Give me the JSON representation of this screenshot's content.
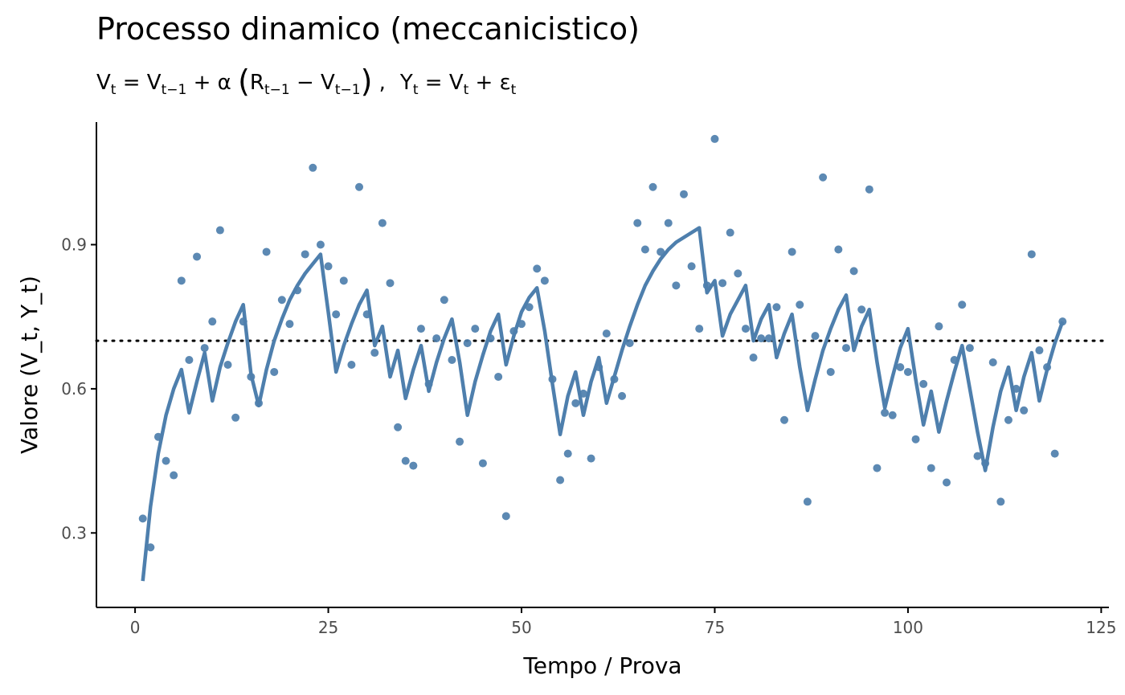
{
  "chart_data": {
    "type": "line",
    "title": "Processo dinamico (meccanicistico)",
    "subtitle": {
      "V": "V",
      "t": "t",
      "t_minus_1": "t−1",
      "alpha": "α",
      "R": "R",
      "Y": "Y",
      "epsilon": "ε",
      "eq": "=",
      "plus": "+",
      "minus": "−",
      "lparen": "(",
      "rparen": ")",
      "comma": ","
    },
    "xlabel": "Tempo / Prova",
    "ylabel": "Valore (V_t, Y_t)",
    "xlim": [
      -5,
      126
    ],
    "ylim": [
      0.145,
      1.155
    ],
    "xticks": [
      0,
      25,
      50,
      75,
      100,
      125
    ],
    "xtick_labels": [
      "0",
      "25",
      "50",
      "75",
      "100",
      "125"
    ],
    "yticks": [
      0.3,
      0.6,
      0.9
    ],
    "ytick_labels": [
      "0.3",
      "0.6",
      "0.9"
    ],
    "grid": false,
    "reference_line": {
      "y": 0.7,
      "style": "dotted",
      "color": "#000000"
    },
    "colors": {
      "series": "#4e7fad",
      "axis": "#000000",
      "tick_text": "#4d4d4d"
    },
    "series": [
      {
        "type": "line",
        "x": [
          1,
          2,
          3,
          4,
          5,
          6,
          7,
          8,
          9,
          10,
          11,
          12,
          13,
          14,
          15,
          16,
          17,
          18,
          19,
          20,
          21,
          22,
          23,
          24,
          25,
          26,
          27,
          28,
          29,
          30,
          31,
          32,
          33,
          34,
          35,
          36,
          37,
          38,
          39,
          40,
          41,
          42,
          43,
          44,
          45,
          46,
          47,
          48,
          49,
          50,
          51,
          52,
          53,
          54,
          55,
          56,
          57,
          58,
          59,
          60,
          61,
          62,
          63,
          64,
          65,
          66,
          67,
          68,
          69,
          70,
          71,
          72,
          73,
          74,
          75,
          76,
          77,
          78,
          79,
          80,
          81,
          82,
          83,
          84,
          85,
          86,
          87,
          88,
          89,
          90,
          91,
          92,
          93,
          94,
          95,
          96,
          97,
          98,
          99,
          100,
          101,
          102,
          103,
          104,
          105,
          106,
          107,
          108,
          109,
          110,
          111,
          112,
          113,
          114,
          115,
          116,
          117,
          118,
          119,
          120
        ],
        "y": [
          0.2,
          0.355,
          0.465,
          0.545,
          0.6,
          0.64,
          0.55,
          0.615,
          0.675,
          0.575,
          0.645,
          0.695,
          0.74,
          0.775,
          0.63,
          0.565,
          0.64,
          0.7,
          0.745,
          0.785,
          0.815,
          0.84,
          0.86,
          0.88,
          0.76,
          0.635,
          0.69,
          0.735,
          0.775,
          0.805,
          0.69,
          0.73,
          0.625,
          0.68,
          0.58,
          0.64,
          0.69,
          0.595,
          0.655,
          0.705,
          0.745,
          0.655,
          0.545,
          0.615,
          0.67,
          0.72,
          0.755,
          0.65,
          0.71,
          0.76,
          0.79,
          0.81,
          0.72,
          0.61,
          0.505,
          0.585,
          0.635,
          0.545,
          0.615,
          0.665,
          0.57,
          0.625,
          0.68,
          0.73,
          0.775,
          0.815,
          0.845,
          0.87,
          0.89,
          0.905,
          0.915,
          0.925,
          0.935,
          0.8,
          0.825,
          0.71,
          0.755,
          0.785,
          0.815,
          0.7,
          0.745,
          0.775,
          0.665,
          0.715,
          0.755,
          0.645,
          0.555,
          0.62,
          0.68,
          0.725,
          0.765,
          0.795,
          0.68,
          0.73,
          0.765,
          0.655,
          0.56,
          0.625,
          0.685,
          0.725,
          0.62,
          0.525,
          0.595,
          0.51,
          0.575,
          0.635,
          0.69,
          0.6,
          0.51,
          0.43,
          0.52,
          0.595,
          0.645,
          0.555,
          0.625,
          0.675,
          0.575,
          0.64,
          0.695,
          0.74
        ]
      },
      {
        "type": "scatter",
        "x": [
          1,
          2,
          3,
          4,
          5,
          6,
          7,
          8,
          9,
          10,
          11,
          12,
          13,
          14,
          15,
          16,
          17,
          18,
          19,
          20,
          21,
          22,
          23,
          24,
          25,
          26,
          27,
          28,
          29,
          30,
          31,
          32,
          33,
          34,
          35,
          36,
          37,
          38,
          39,
          40,
          41,
          42,
          43,
          44,
          45,
          46,
          47,
          48,
          49,
          50,
          51,
          52,
          53,
          54,
          55,
          56,
          57,
          58,
          59,
          60,
          61,
          62,
          63,
          64,
          65,
          66,
          67,
          68,
          69,
          70,
          71,
          72,
          73,
          74,
          75,
          76,
          77,
          78,
          79,
          80,
          81,
          82,
          83,
          84,
          85,
          86,
          87,
          88,
          89,
          90,
          91,
          92,
          93,
          94,
          95,
          96,
          97,
          98,
          99,
          100,
          101,
          102,
          103,
          104,
          105,
          106,
          107,
          108,
          109,
          110,
          111,
          112,
          113,
          114,
          115,
          116,
          117,
          118,
          119,
          120
        ],
        "y": [
          0.33,
          0.27,
          0.5,
          0.45,
          0.42,
          0.825,
          0.66,
          0.875,
          0.685,
          0.74,
          0.93,
          0.65,
          0.54,
          0.74,
          0.625,
          0.57,
          0.885,
          0.635,
          0.785,
          0.735,
          0.805,
          0.88,
          1.06,
          0.9,
          0.855,
          0.755,
          0.825,
          0.65,
          1.02,
          0.755,
          0.675,
          0.945,
          0.82,
          0.52,
          0.45,
          0.44,
          0.725,
          0.61,
          0.705,
          0.785,
          0.66,
          0.49,
          0.695,
          0.725,
          0.445,
          0.705,
          0.625,
          0.335,
          0.72,
          0.735,
          0.77,
          0.85,
          0.825,
          0.62,
          0.41,
          0.465,
          0.57,
          0.59,
          0.455,
          0.645,
          0.715,
          0.62,
          0.585,
          0.695,
          0.945,
          0.89,
          1.02,
          0.885,
          0.945,
          0.815,
          1.005,
          0.855,
          0.725,
          0.815,
          1.12,
          0.82,
          0.925,
          0.84,
          0.725,
          0.665,
          0.705,
          0.705,
          0.77,
          0.535,
          0.885,
          0.775,
          0.365,
          0.71,
          1.04,
          0.635,
          0.89,
          0.685,
          0.845,
          0.765,
          1.015,
          0.435,
          0.55,
          0.545,
          0.645,
          0.635,
          0.495,
          0.61,
          0.435,
          0.73,
          0.405,
          0.66,
          0.775,
          0.685,
          0.46,
          0.445,
          0.655,
          0.365,
          0.535,
          0.6,
          0.555,
          0.88,
          0.68,
          0.645,
          0.465,
          0.74
        ]
      }
    ]
  }
}
